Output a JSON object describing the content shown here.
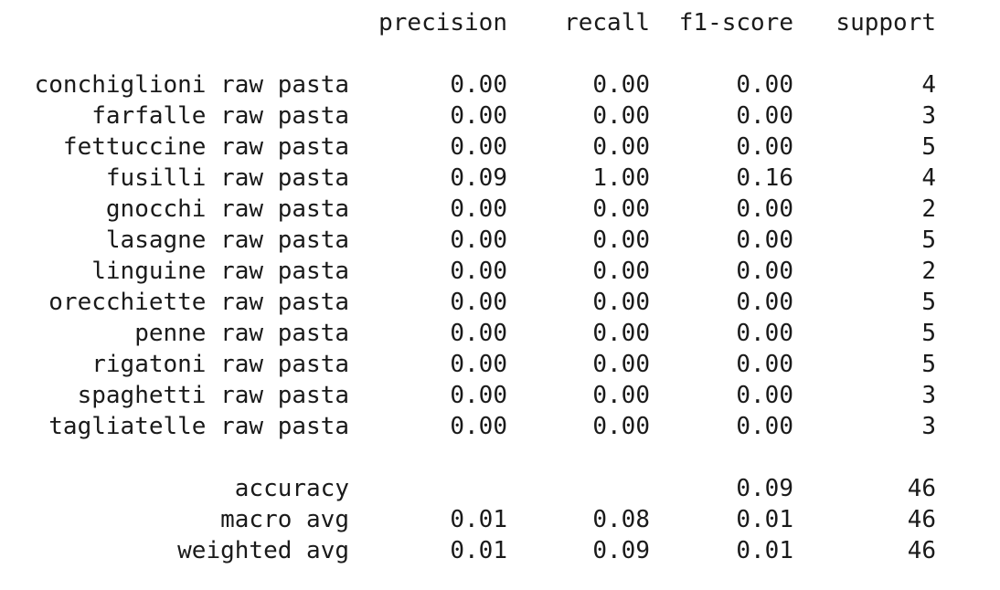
{
  "headers": {
    "precision": "precision",
    "recall": "recall",
    "f1": "f1-score",
    "support": "support"
  },
  "rows": [
    {
      "label": "conchiglioni raw pasta",
      "precision": "0.00",
      "recall": "0.00",
      "f1": "0.00",
      "support": "4"
    },
    {
      "label": "farfalle raw pasta",
      "precision": "0.00",
      "recall": "0.00",
      "f1": "0.00",
      "support": "3"
    },
    {
      "label": "fettuccine raw pasta",
      "precision": "0.00",
      "recall": "0.00",
      "f1": "0.00",
      "support": "5"
    },
    {
      "label": "fusilli raw pasta",
      "precision": "0.09",
      "recall": "1.00",
      "f1": "0.16",
      "support": "4"
    },
    {
      "label": "gnocchi raw pasta",
      "precision": "0.00",
      "recall": "0.00",
      "f1": "0.00",
      "support": "2"
    },
    {
      "label": "lasagne raw pasta",
      "precision": "0.00",
      "recall": "0.00",
      "f1": "0.00",
      "support": "5"
    },
    {
      "label": "linguine raw pasta",
      "precision": "0.00",
      "recall": "0.00",
      "f1": "0.00",
      "support": "2"
    },
    {
      "label": "orecchiette raw pasta",
      "precision": "0.00",
      "recall": "0.00",
      "f1": "0.00",
      "support": "5"
    },
    {
      "label": "penne raw pasta",
      "precision": "0.00",
      "recall": "0.00",
      "f1": "0.00",
      "support": "5"
    },
    {
      "label": "rigatoni raw pasta",
      "precision": "0.00",
      "recall": "0.00",
      "f1": "0.00",
      "support": "5"
    },
    {
      "label": "spaghetti raw pasta",
      "precision": "0.00",
      "recall": "0.00",
      "f1": "0.00",
      "support": "3"
    },
    {
      "label": "tagliatelle raw pasta",
      "precision": "0.00",
      "recall": "0.00",
      "f1": "0.00",
      "support": "3"
    }
  ],
  "summary": {
    "accuracy": {
      "label": "accuracy",
      "f1": "0.09",
      "support": "46"
    },
    "macro": {
      "label": "macro avg",
      "precision": "0.01",
      "recall": "0.08",
      "f1": "0.01",
      "support": "46"
    },
    "weighted": {
      "label": "weighted avg",
      "precision": "0.01",
      "recall": "0.09",
      "f1": "0.01",
      "support": "46"
    }
  }
}
